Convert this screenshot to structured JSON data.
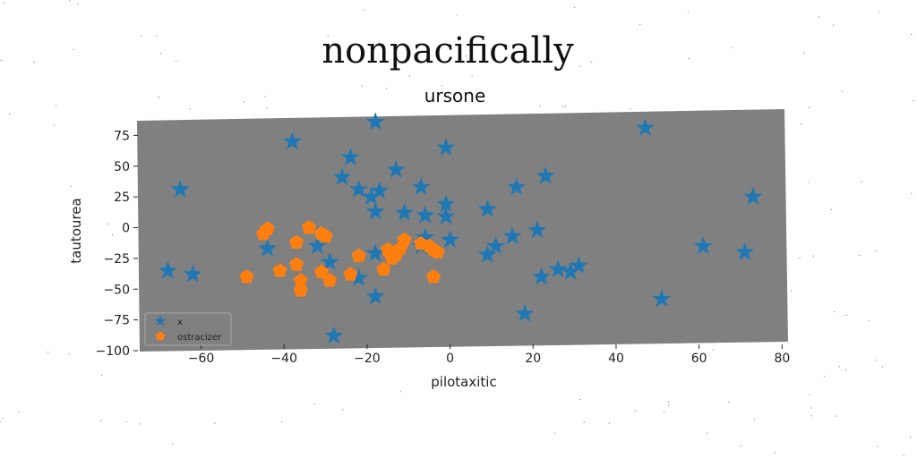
{
  "suptitle": "nonpacifically",
  "chart_data": {
    "type": "scatter",
    "title": "ursone",
    "xlabel": "pilotaxitic",
    "ylabel": "tautourea",
    "xlim": [
      -75,
      81
    ],
    "ylim": [
      -100,
      92
    ],
    "xticks": [
      -60,
      -40,
      -20,
      0,
      20,
      40,
      60,
      80
    ],
    "yticks": [
      -100,
      -75,
      -50,
      -25,
      0,
      25,
      50,
      75
    ],
    "xtick_labels": [
      "−60",
      "−40",
      "−20",
      "0",
      "20",
      "40",
      "60",
      "80"
    ],
    "ytick_labels": [
      "−100",
      "−75",
      "−50",
      "−25",
      "0",
      "25",
      "50",
      "75"
    ],
    "background_color": "#808080",
    "grid": false,
    "legend_position": "lower-left",
    "series": [
      {
        "name": "x",
        "marker": "star",
        "color": "#1f77b4",
        "points": [
          [
            -18,
            86
          ],
          [
            -38,
            70
          ],
          [
            -65,
            31
          ],
          [
            -68,
            -35
          ],
          [
            -62,
            -38
          ],
          [
            -44,
            -17
          ],
          [
            -24,
            57
          ],
          [
            -26,
            41
          ],
          [
            -22,
            31
          ],
          [
            -19,
            25
          ],
          [
            -17,
            30
          ],
          [
            -18,
            13
          ],
          [
            -13,
            47
          ],
          [
            -11,
            12
          ],
          [
            -7,
            33
          ],
          [
            -6,
            10
          ],
          [
            -1,
            65
          ],
          [
            -1,
            19
          ],
          [
            -1,
            9
          ],
          [
            0,
            -10
          ],
          [
            -6,
            -8
          ],
          [
            -7,
            -15
          ],
          [
            -32,
            -15
          ],
          [
            -22,
            -41
          ],
          [
            -18,
            -21
          ],
          [
            -18,
            -56
          ],
          [
            -28,
            -88
          ],
          [
            -29,
            -28
          ],
          [
            9,
            15
          ],
          [
            9,
            -22
          ],
          [
            11,
            -15
          ],
          [
            15,
            -7
          ],
          [
            16,
            33
          ],
          [
            23,
            42
          ],
          [
            21,
            -2
          ],
          [
            22,
            -40
          ],
          [
            26,
            -34
          ],
          [
            29,
            -36
          ],
          [
            31,
            -31
          ],
          [
            18,
            -70
          ],
          [
            47,
            81
          ],
          [
            61,
            -15
          ],
          [
            51,
            -58
          ],
          [
            71,
            -20
          ],
          [
            73,
            25
          ]
        ]
      },
      {
        "name": "ostracizer",
        "marker": "pentagon",
        "color": "#ff7f0e",
        "points": [
          [
            -49,
            -40
          ],
          [
            -45,
            -5
          ],
          [
            -44,
            -1
          ],
          [
            -41,
            -35
          ],
          [
            -37,
            -12
          ],
          [
            -37,
            -30
          ],
          [
            -36,
            -43
          ],
          [
            -36,
            -51
          ],
          [
            -34,
            0
          ],
          [
            -31,
            -36
          ],
          [
            -31,
            -5
          ],
          [
            -30,
            -7
          ],
          [
            -29,
            -43
          ],
          [
            -24,
            -38
          ],
          [
            -22,
            -23
          ],
          [
            -16,
            -34
          ],
          [
            -15,
            -18
          ],
          [
            -14,
            -25
          ],
          [
            -13,
            -22
          ],
          [
            -12,
            -17
          ],
          [
            -11,
            -10
          ],
          [
            -7,
            -13
          ],
          [
            -5,
            -15
          ],
          [
            -4,
            -18
          ],
          [
            -4,
            -40
          ],
          [
            -3,
            -20
          ]
        ]
      }
    ]
  }
}
